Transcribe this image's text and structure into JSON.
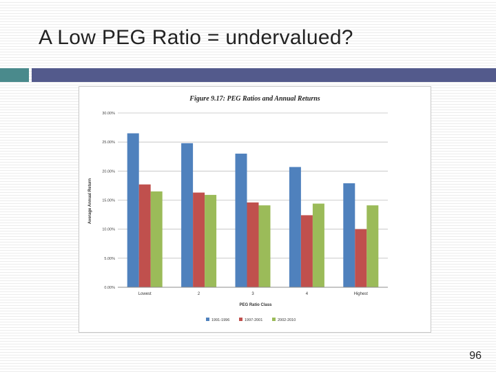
{
  "slide": {
    "title": "A Low PEG Ratio = undervalued?",
    "page_number": "96"
  },
  "colors": {
    "accent_left": "#4a8a8c",
    "accent_bar": "#535a8c"
  },
  "chart_data": {
    "type": "bar",
    "title": "Figure 9.17: PEG Ratios and Annual Returns",
    "xlabel": "PEG Ratio Class",
    "ylabel": "Average Annual Return",
    "categories": [
      "Lowest",
      "2",
      "3",
      "4",
      "Highest"
    ],
    "ylim": [
      0,
      30
    ],
    "yticks": [
      "0.00%",
      "5.00%",
      "10.00%",
      "15.00%",
      "20.00%",
      "25.00%",
      "30.00%"
    ],
    "grid": true,
    "legend_position": "bottom",
    "series": [
      {
        "name": "1991-1996",
        "color": "#4f81bd",
        "values": [
          26.5,
          24.8,
          23.0,
          20.7,
          17.9
        ]
      },
      {
        "name": "1997-2001",
        "color": "#c0504d",
        "values": [
          17.7,
          16.3,
          14.6,
          12.4,
          10.0
        ]
      },
      {
        "name": "2002-2010",
        "color": "#9bbb59",
        "values": [
          16.5,
          15.9,
          14.1,
          14.4,
          14.1
        ]
      }
    ]
  }
}
